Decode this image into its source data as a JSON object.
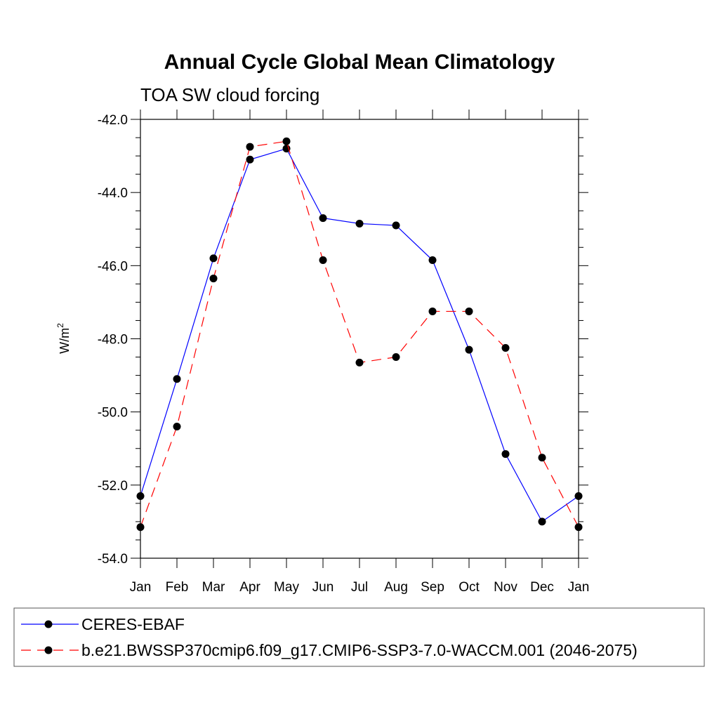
{
  "chart_data": {
    "type": "line",
    "title": "Annual Cycle Global Mean Climatology",
    "subtitle": "TOA SW cloud forcing",
    "ylabel_base": "W/m",
    "ylabel_sup": "2",
    "xlabel": "",
    "categories": [
      "Jan",
      "Feb",
      "Mar",
      "Apr",
      "May",
      "Jun",
      "Jul",
      "Aug",
      "Sep",
      "Oct",
      "Nov",
      "Dec",
      "Jan"
    ],
    "ylim": [
      -54,
      -42
    ],
    "yticks": [
      -42,
      -44,
      -46,
      -48,
      -50,
      -52,
      -54
    ],
    "ytick_labels": [
      "-42.0",
      "-44.0",
      "-46.0",
      "-48.0",
      "-50.0",
      "-52.0",
      "-54.0"
    ],
    "series": [
      {
        "name": "CERES-EBAF",
        "color": "#0000ff",
        "dash": "solid",
        "values": [
          -52.3,
          -49.1,
          -45.8,
          -43.1,
          -42.8,
          -44.7,
          -44.85,
          -44.9,
          -45.85,
          -48.3,
          -51.15,
          -53.0,
          -52.3
        ]
      },
      {
        "name": "b.e21.BWSSP370cmip6.f09_g17.CMIP6-SSP3-7.0-WACCM.001 (2046-2075)",
        "color": "#ff0000",
        "dash": "dashed",
        "values": [
          -53.15,
          -50.4,
          -46.35,
          -42.75,
          -42.6,
          -45.85,
          -48.65,
          -48.5,
          -47.25,
          -47.25,
          -48.25,
          -51.25,
          -53.15
        ]
      }
    ],
    "legend_position": "bottom"
  }
}
